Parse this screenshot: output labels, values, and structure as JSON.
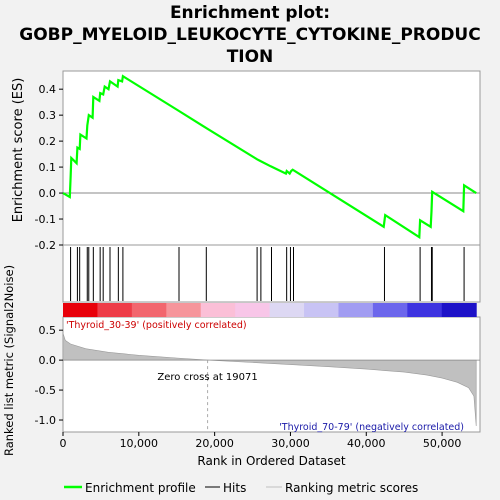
{
  "title": [
    "Enrichment plot:",
    "GOBP_MYELOID_LEUKOCYTE_CYTOKINE_PRODUC",
    "TION"
  ],
  "chart_data": {
    "type": "line",
    "es_panel": {
      "ylabel": "Enrichment score (ES)",
      "yticks": [
        -0.2,
        -0.1,
        0.0,
        0.1,
        0.2,
        0.3,
        0.4
      ],
      "ylim": [
        -0.2,
        0.47
      ],
      "profile_points": [
        [
          0,
          0.0
        ],
        [
          900,
          -0.015
        ],
        [
          1000,
          0.06
        ],
        [
          1100,
          0.135
        ],
        [
          1800,
          0.115
        ],
        [
          1900,
          0.175
        ],
        [
          2200,
          0.17
        ],
        [
          2300,
          0.225
        ],
        [
          3100,
          0.21
        ],
        [
          3200,
          0.26
        ],
        [
          3400,
          0.3
        ],
        [
          3900,
          0.29
        ],
        [
          4000,
          0.37
        ],
        [
          4800,
          0.355
        ],
        [
          4900,
          0.385
        ],
        [
          5300,
          0.38
        ],
        [
          5500,
          0.41
        ],
        [
          6000,
          0.4
        ],
        [
          6200,
          0.43
        ],
        [
          7200,
          0.41
        ],
        [
          7300,
          0.435
        ],
        [
          7800,
          0.43
        ],
        [
          7900,
          0.45
        ],
        [
          15200,
          0.318
        ],
        [
          18800,
          0.252
        ],
        [
          25600,
          0.13
        ],
        [
          26000,
          0.124
        ],
        [
          27400,
          0.103
        ],
        [
          29400,
          0.075
        ],
        [
          29500,
          0.085
        ],
        [
          29900,
          0.075
        ],
        [
          30100,
          0.085
        ],
        [
          30300,
          0.09
        ],
        [
          42300,
          -0.13
        ],
        [
          42500,
          -0.085
        ],
        [
          47000,
          -0.17
        ],
        [
          47100,
          -0.105
        ],
        [
          48500,
          -0.13
        ],
        [
          48600,
          -0.07
        ],
        [
          48700,
          0.005
        ],
        [
          52800,
          -0.07
        ],
        [
          52900,
          0.03
        ],
        [
          54500,
          0.0
        ]
      ],
      "hits": [
        1000,
        1900,
        2200,
        3200,
        3400,
        4000,
        4900,
        5300,
        6200,
        7300,
        7900,
        15300,
        18900,
        25600,
        26100,
        27500,
        29500,
        30000,
        30400,
        42400,
        47100,
        48600,
        48700,
        52900
      ]
    },
    "ranked_panel": {
      "ylabel": "Ranked list metric (Signal2Noise)",
      "xlabel": "Rank in Ordered Dataset",
      "yticks": [
        -1.0,
        -0.5,
        0.0,
        0.5
      ],
      "ylim": [
        -1.2,
        0.72
      ],
      "xticks": [
        0,
        10000,
        20000,
        30000,
        40000,
        50000
      ],
      "xtick_labels": [
        "0",
        "10,000",
        "20,000",
        "30,000",
        "40,000",
        "50,000"
      ],
      "xlim": [
        0,
        55000
      ],
      "n_genes": 54500,
      "zero_cross": 19071,
      "zero_cross_label": "Zero cross at 19071",
      "pos_label": "'Thyroid_30-39' (positively correlated)",
      "neg_label": "'Thyroid_70-79' (negatively correlated)",
      "metric_curve": [
        [
          0,
          0.45
        ],
        [
          300,
          0.33
        ],
        [
          1000,
          0.27
        ],
        [
          3000,
          0.19
        ],
        [
          6000,
          0.13
        ],
        [
          10000,
          0.08
        ],
        [
          15000,
          0.035
        ],
        [
          19071,
          0.0
        ],
        [
          25000,
          -0.04
        ],
        [
          30000,
          -0.075
        ],
        [
          35000,
          -0.11
        ],
        [
          40000,
          -0.15
        ],
        [
          45000,
          -0.2
        ],
        [
          48000,
          -0.25
        ],
        [
          50000,
          -0.3
        ],
        [
          52000,
          -0.37
        ],
        [
          53500,
          -0.46
        ],
        [
          54200,
          -0.6
        ],
        [
          54500,
          -1.1
        ]
      ]
    },
    "heatmap_colors": [
      "#e8000a",
      "#ee3c48",
      "#f2666e",
      "#f6959b",
      "#fbbfd7",
      "#f8c6e8",
      "#ddd8f3",
      "#c8c3f4",
      "#a19cf2",
      "#6c66ec",
      "#3d33e0",
      "#1d12c8"
    ],
    "legend": [
      {
        "name": "Enrichment profile",
        "color": "#00ff00"
      },
      {
        "name": "Hits",
        "color": "#000000"
      },
      {
        "name": "Ranking metric scores",
        "color": "#c0c0c0"
      }
    ]
  }
}
